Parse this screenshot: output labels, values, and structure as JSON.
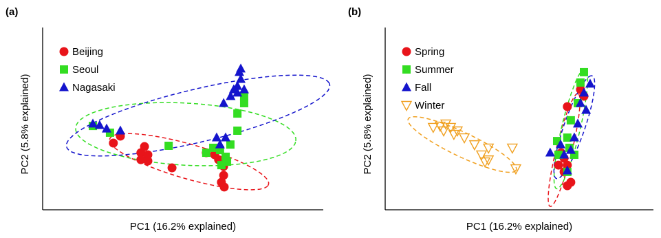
{
  "chart_data": [
    {
      "type": "scatter",
      "label": "(a)",
      "xlabel": "PC1 (16.2% explained)",
      "ylabel": "PC2 (5.8% explained)",
      "xlim": [
        0,
        100
      ],
      "ylim": [
        0,
        100
      ],
      "legend": "upper left",
      "series": [
        {
          "name": "Beijing",
          "color": "#e8141a",
          "marker": "circle",
          "x": [
            27.7,
            25.2,
            36.3,
            35.0,
            37.5,
            35.0,
            37.5,
            46.1,
            58.3,
            62.7,
            64.5,
            64.5,
            63.7,
            64.7,
            61.3
          ],
          "y": [
            40.4,
            36.6,
            34.7,
            31.3,
            30.2,
            27.5,
            26.8,
            23.0,
            31.3,
            27.5,
            23.8,
            18.9,
            15.1,
            12.5,
            30.2
          ],
          "ellipse": {
            "center": [
              52.2,
              26.4
            ],
            "radii": [
              31,
              9
            ],
            "angle": -25
          }
        },
        {
          "name": "Seoul",
          "color": "#33dd22",
          "marker": "square",
          "x": [
            17.9,
            24.0,
            44.9,
            58.3,
            60.8,
            63.2,
            65.2,
            66.9,
            69.4,
            69.4,
            71.8,
            71.8,
            65.7,
            63.7
          ],
          "y": [
            46.0,
            42.3,
            35.1,
            31.3,
            34.0,
            32.8,
            29.1,
            35.8,
            43.4,
            52.8,
            58.5,
            62.3,
            26.4,
            24.5
          ],
          "ellipse": {
            "center": [
              51,
              41.5
            ],
            "radii": [
              39.4,
              17
            ],
            "angle": -5.5
          }
        },
        {
          "name": "Nagasaki",
          "color": "#1414cc",
          "marker": "triangle",
          "x": [
            17.9,
            20.3,
            22.8,
            27.7,
            62.0,
            63.2,
            65.2,
            64.5,
            67.0,
            68.1,
            69.4,
            70.6,
            70.1,
            70.6,
            69.4,
            71.8
          ],
          "y": [
            47.2,
            46.4,
            44.5,
            43.4,
            39.6,
            35.8,
            39.6,
            58.5,
            62.3,
            66.0,
            67.9,
            71.7,
            75.5,
            77.4,
            64.2,
            66.0
          ],
          "ellipse": {
            "center": [
              55.4,
              51.7
            ],
            "radii": [
              50,
              14
            ],
            "angle": 21
          }
        }
      ]
    },
    {
      "type": "scatter",
      "label": "(b)",
      "xlabel": "PC1 (16.2% explained)",
      "ylabel": "PC2 (5.8% explained)",
      "xlim": [
        0,
        100
      ],
      "ylim": [
        0,
        100
      ],
      "legend": "upper left",
      "series": [
        {
          "name": "Spring",
          "color": "#e8141a",
          "marker": "circle",
          "x": [
            67.9,
            66.7,
            67.9,
            66.7,
            69.2,
            67.9,
            65.6,
            72.8,
            74.1,
            64.6
          ],
          "y": [
            56.6,
            28.3,
            24.5,
            20.8,
            15.1,
            13.2,
            31.3,
            66.0,
            62.3,
            24.5
          ],
          "ellipse": {
            "center": [
              66.7,
              32.8
            ],
            "radii": [
              31.4,
              3
            ],
            "angle": 80.6
          }
        },
        {
          "name": "Summer",
          "color": "#33dd22",
          "marker": "square",
          "x": [
            74.1,
            72.8,
            71.8,
            69.2,
            67.9,
            64.1,
            64.6,
            68.7,
            67.9,
            70.5
          ],
          "y": [
            75.5,
            69.8,
            58.5,
            49.1,
            39.6,
            37.7,
            30.2,
            34.0,
            20.8,
            30.2
          ],
          "ellipse": {
            "center": [
              69.2,
              44.5
            ],
            "radii": [
              33.4,
              3.5
            ],
            "angle": 81
          }
        },
        {
          "name": "Fall",
          "color": "#1414cc",
          "marker": "triangle",
          "x": [
            76.4,
            74.1,
            72.8,
            74.9,
            71.8,
            70.5,
            69.2,
            66.7,
            61.5,
            67.9,
            65.4
          ],
          "y": [
            69.1,
            64.2,
            58.5,
            54.7,
            47.2,
            39.6,
            32.8,
            30.2,
            31.3,
            21.5,
            35.8
          ],
          "ellipse": {
            "center": [
              70.5,
              45.3
            ],
            "radii": [
              29,
              4
            ],
            "angle": 77
          }
        },
        {
          "name": "Winter",
          "color": "#f0a020",
          "marker": "triangle-down-open",
          "x": [
            20.5,
            22.6,
            24.4,
            26.9,
            25.6,
            21.8,
            29.5,
            33.3,
            38.5,
            35.9,
            38.5,
            37.2,
            47.4,
            48.7,
            17.9
          ],
          "y": [
            46.0,
            47.2,
            45.3,
            43.4,
            41.5,
            43.4,
            39.6,
            35.8,
            34.0,
            30.2,
            27.5,
            26.4,
            34.0,
            22.6,
            45.3
          ],
          "ellipse": {
            "center": [
              28.7,
              35.8
            ],
            "radii": [
              24.6,
              6
            ],
            "angle": -36
          }
        }
      ]
    }
  ]
}
